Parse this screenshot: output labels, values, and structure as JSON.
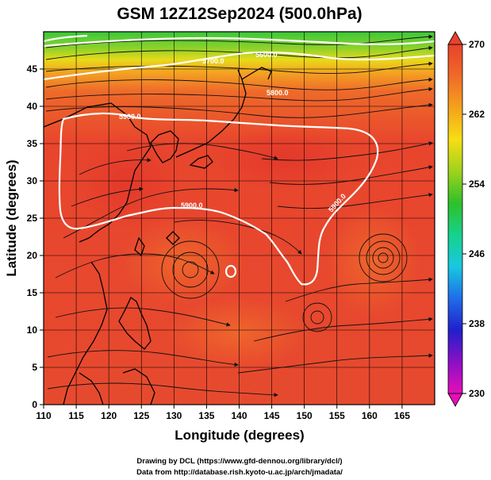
{
  "title": "GSM 12Z12Sep2024 (500.0hPa)",
  "xlabel": "Longitude (degrees)",
  "ylabel": "Latitude (degrees)",
  "credits": [
    "Drawing by DCL (https://www.gfd-dennou.org/library/dcl/)",
    "Data from http://database.rish.kyoto-u.ac.jp/arch/jmadata/"
  ],
  "map": {
    "lon_range": [
      110,
      170
    ],
    "lat_range": [
      0,
      50
    ],
    "lon_ticks": [
      110,
      115,
      120,
      125,
      130,
      135,
      140,
      145,
      150,
      155,
      160,
      165
    ],
    "lat_ticks": [
      0,
      5,
      10,
      15,
      20,
      25,
      30,
      35,
      40,
      45
    ],
    "grid": "5-degree lat/lon grid",
    "field": "temperature (K), filled colour",
    "overlay": "wind streamlines; geopotential height contours"
  },
  "contour_labels": [
    "5600.0",
    "5700.0",
    "5800.0",
    "5900.0",
    "5900.0",
    "5900.0"
  ],
  "colorbar": {
    "ticks": [
      "270",
      "262",
      "254",
      "246",
      "238",
      "230"
    ],
    "min": 230,
    "max": 270,
    "colors": [
      "#e40fb8",
      "#8a10c4",
      "#2020cc",
      "#1f6ee8",
      "#18c8e0",
      "#16d28c",
      "#2ec02a",
      "#9ed21c",
      "#f6de14",
      "#f5a21c",
      "#ef6a2a",
      "#e8422c"
    ]
  }
}
